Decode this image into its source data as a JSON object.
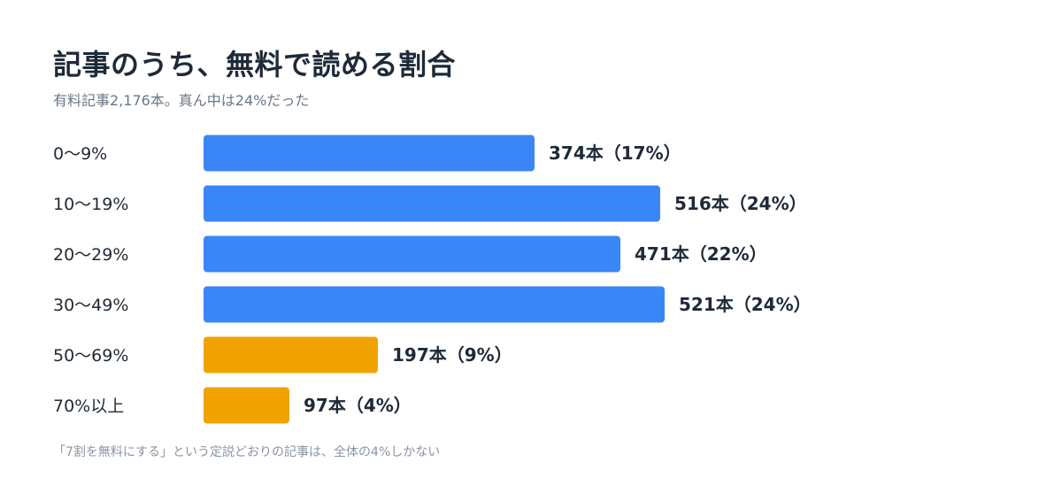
{
  "colors": {
    "primary": "#3b86f7",
    "highlight": "#f0a300"
  },
  "chart_data": {
    "type": "bar",
    "orientation": "horizontal",
    "title": "記事のうち、無料で読める割合",
    "subtitle": "有料記事2,176本。真ん中は24%だった",
    "footnote": "「7割を無料にする」という定説どおりの記事は、全体の4%しかない",
    "categories": [
      "0〜9%",
      "10〜19%",
      "20〜29%",
      "30〜49%",
      "50〜69%",
      "70%以上"
    ],
    "values": [
      374,
      516,
      471,
      521,
      197,
      97
    ],
    "value_labels": [
      "374本（17%）",
      "516本（24%）",
      "471本（22%）",
      "521本（24%）",
      "197本（9%）",
      "97本（4%）"
    ],
    "bar_colors": [
      "#3b86f7",
      "#3b86f7",
      "#3b86f7",
      "#3b86f7",
      "#f0a300",
      "#f0a300"
    ],
    "xlim": [
      0,
      600
    ],
    "grid": false,
    "legend": false
  }
}
